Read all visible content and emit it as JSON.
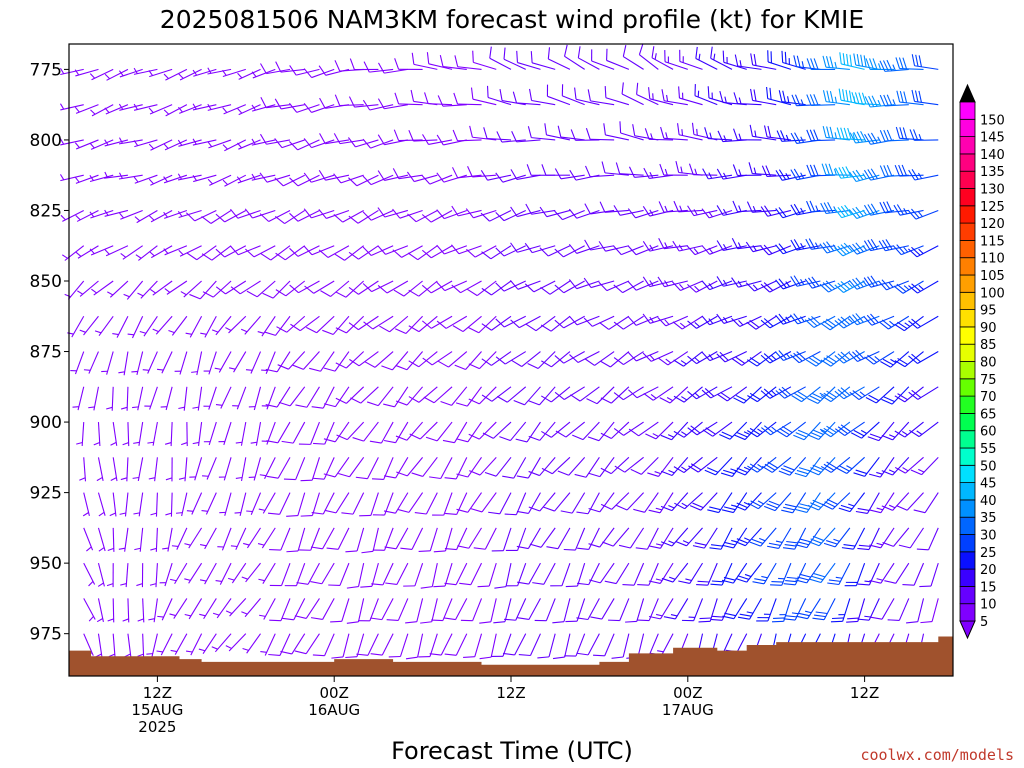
{
  "chart_data": {
    "type": "wind-barb-profile",
    "title": "2025081506 NAM3KM forecast wind profile (kt) for KMIE",
    "xlabel": "Forecast Time (UTC)",
    "credit": "coolwx.com/models",
    "y_axis": {
      "unit": "hPa",
      "inverted": true,
      "range": [
        766,
        990
      ],
      "ticks": [
        775,
        800,
        825,
        850,
        875,
        900,
        925,
        950,
        975
      ]
    },
    "x_axis": {
      "range_hours": [
        0,
        60
      ],
      "ticks": [
        {
          "hour": 6,
          "lines": [
            "12Z",
            "15AUG",
            "2025"
          ]
        },
        {
          "hour": 18,
          "lines": [
            "00Z",
            "16AUG"
          ]
        },
        {
          "hour": 30,
          "lines": [
            "12Z"
          ]
        },
        {
          "hour": 42,
          "lines": [
            "00Z",
            "17AUG"
          ]
        },
        {
          "hour": 54,
          "lines": [
            "12Z"
          ]
        }
      ]
    },
    "colorbar": {
      "levels": [
        5,
        10,
        15,
        20,
        25,
        30,
        35,
        40,
        45,
        50,
        55,
        60,
        65,
        70,
        75,
        80,
        85,
        90,
        95,
        100,
        105,
        110,
        115,
        120,
        125,
        130,
        135,
        140,
        145,
        150
      ],
      "colors": [
        "#8000ff",
        "#6600ff",
        "#3a00ff",
        "#0a10ff",
        "#0040ff",
        "#0066ff",
        "#0090ff",
        "#00b8ff",
        "#00e0ff",
        "#00ffcc",
        "#00ff90",
        "#00ff50",
        "#22ff22",
        "#66ff00",
        "#aaff00",
        "#e6ff00",
        "#ffff00",
        "#ffe000",
        "#ffc000",
        "#ff9f00",
        "#ff8000",
        "#ff6000",
        "#ff3d00",
        "#ff1a00",
        "#ff0020",
        "#ff0050",
        "#ff0080",
        "#ff00b0",
        "#ff00e0",
        "#ff00ff"
      ]
    },
    "surface_pressure": [
      {
        "hour": 0,
        "p": 981
      },
      {
        "hour": 1.5,
        "p": 981
      },
      {
        "hour": 1.5,
        "p": 983
      },
      {
        "hour": 7.5,
        "p": 983
      },
      {
        "hour": 7.5,
        "p": 984
      },
      {
        "hour": 9,
        "p": 984
      },
      {
        "hour": 9,
        "p": 985
      },
      {
        "hour": 18,
        "p": 985
      },
      {
        "hour": 18,
        "p": 984
      },
      {
        "hour": 22,
        "p": 984
      },
      {
        "hour": 22,
        "p": 985
      },
      {
        "hour": 28,
        "p": 985
      },
      {
        "hour": 28,
        "p": 986
      },
      {
        "hour": 36,
        "p": 986
      },
      {
        "hour": 36,
        "p": 985
      },
      {
        "hour": 38,
        "p": 985
      },
      {
        "hour": 38,
        "p": 982
      },
      {
        "hour": 41,
        "p": 982
      },
      {
        "hour": 41,
        "p": 980
      },
      {
        "hour": 44,
        "p": 980
      },
      {
        "hour": 44,
        "p": 981
      },
      {
        "hour": 46,
        "p": 981
      },
      {
        "hour": 46,
        "p": 979
      },
      {
        "hour": 48,
        "p": 979
      },
      {
        "hour": 48,
        "p": 978
      },
      {
        "hour": 59,
        "p": 978
      },
      {
        "hour": 59,
        "p": 976
      },
      {
        "hour": 60,
        "p": 976
      }
    ],
    "wind": {
      "hours_start": 0,
      "hours_step": 1,
      "levels_hpa": [
        775,
        787.5,
        800,
        812.5,
        825,
        837.5,
        850,
        862.5,
        875,
        887.5,
        900,
        912.5,
        925,
        937.5,
        950,
        962.5,
        975,
        987.5
      ],
      "dir_keys": [
        {
          "hour": 0,
          "dirs": [
            250,
            250,
            255,
            260,
            250,
            240,
            225,
            210,
            195,
            185,
            175,
            170,
            165,
            160,
            155,
            150,
            150,
            150
          ]
        },
        {
          "hour": 10,
          "dirs": [
            250,
            250,
            250,
            250,
            245,
            240,
            230,
            215,
            200,
            195,
            190,
            195,
            200,
            210,
            215,
            220,
            220,
            220
          ]
        },
        {
          "hour": 20,
          "dirs": [
            260,
            260,
            255,
            250,
            245,
            240,
            235,
            230,
            225,
            220,
            215,
            210,
            205,
            200,
            200,
            200,
            200,
            200
          ]
        },
        {
          "hour": 30,
          "dirs": [
            290,
            280,
            270,
            260,
            250,
            245,
            240,
            235,
            230,
            225,
            220,
            215,
            210,
            205,
            200,
            200,
            200,
            200
          ]
        },
        {
          "hour": 40,
          "dirs": [
            300,
            290,
            280,
            270,
            260,
            255,
            250,
            245,
            240,
            235,
            230,
            225,
            220,
            215,
            210,
            205,
            200,
            200
          ]
        },
        {
          "hour": 50,
          "dirs": [
            280,
            275,
            270,
            265,
            260,
            255,
            250,
            245,
            240,
            235,
            230,
            225,
            220,
            215,
            210,
            205,
            200,
            200
          ]
        },
        {
          "hour": 60,
          "dirs": [
            270,
            270,
            265,
            260,
            255,
            250,
            245,
            240,
            235,
            230,
            225,
            220,
            215,
            210,
            205,
            200,
            200,
            200
          ]
        }
      ],
      "speed_keys": [
        {
          "hour": 0,
          "speeds": [
            6,
            6,
            6,
            6,
            7,
            7,
            7,
            6,
            6,
            6,
            6,
            6,
            6,
            6,
            6,
            6,
            6,
            6
          ]
        },
        {
          "hour": 20,
          "speeds": [
            8,
            8,
            8,
            8,
            8,
            8,
            8,
            8,
            8,
            8,
            8,
            8,
            8,
            8,
            8,
            8,
            8,
            8
          ]
        },
        {
          "hour": 30,
          "speeds": [
            10,
            10,
            10,
            10,
            10,
            10,
            10,
            10,
            10,
            10,
            10,
            10,
            10,
            10,
            10,
            10,
            10,
            10
          ]
        },
        {
          "hour": 40,
          "speeds": [
            12,
            12,
            12,
            12,
            12,
            12,
            12,
            12,
            12,
            12,
            12,
            12,
            12,
            12,
            12,
            12,
            12,
            12
          ]
        },
        {
          "hour": 48,
          "speeds": [
            18,
            18,
            17,
            17,
            16,
            16,
            17,
            18,
            20,
            22,
            24,
            26,
            26,
            26,
            25,
            24,
            20,
            18
          ]
        },
        {
          "hour": 52,
          "speeds": [
            30,
            30,
            28,
            28,
            27,
            27,
            28,
            30,
            32,
            33,
            33,
            32,
            32,
            31,
            30,
            28,
            22,
            18
          ]
        },
        {
          "hour": 54,
          "speeds": [
            42,
            44,
            44,
            42,
            40,
            38,
            36,
            34,
            32,
            30,
            28,
            26,
            24,
            22,
            20,
            18,
            16,
            14
          ]
        },
        {
          "hour": 56,
          "speeds": [
            36,
            36,
            34,
            32,
            30,
            29,
            29,
            28,
            26,
            22,
            18,
            16,
            14,
            13,
            13,
            12,
            12,
            12
          ]
        },
        {
          "hour": 60,
          "speeds": [
            26,
            26,
            25,
            24,
            24,
            23,
            22,
            20,
            18,
            16,
            14,
            12,
            10,
            9,
            9,
            8,
            8,
            8
          ]
        }
      ]
    }
  }
}
